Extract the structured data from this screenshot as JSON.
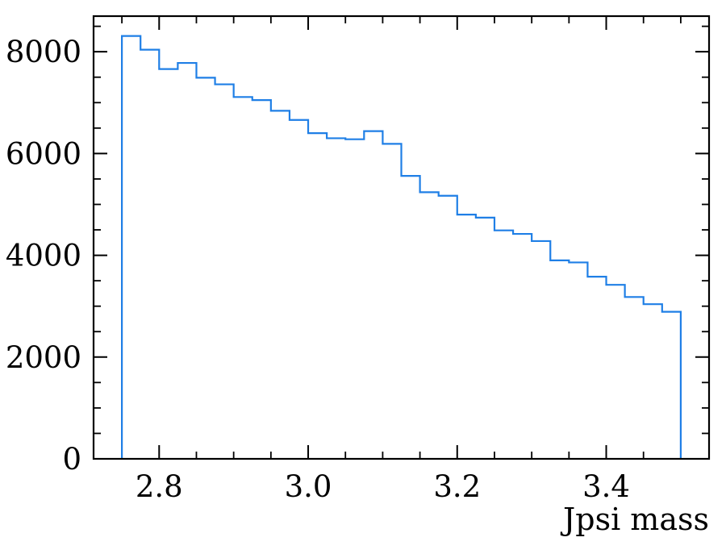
{
  "chart_data": {
    "type": "histogram",
    "xlabel": "Jpsi mass",
    "ylabel": "",
    "title": "",
    "xlim": [
      2.712,
      3.538
    ],
    "ylim": [
      0,
      8700
    ],
    "grid": false,
    "series_color": "#1f7fe6",
    "xticks": [
      2.8,
      3.0,
      3.2,
      3.4
    ],
    "xtick_labels": [
      "2.8",
      "3.0",
      "3.2",
      "3.4"
    ],
    "yticks": [
      0,
      2000,
      4000,
      6000,
      8000
    ],
    "ytick_labels": [
      "0",
      "2000",
      "4000",
      "6000",
      "8000"
    ],
    "bin_edges": [
      2.75,
      2.775,
      2.8,
      2.825,
      2.85,
      2.875,
      2.9,
      2.925,
      2.95,
      2.975,
      3.0,
      3.025,
      3.05,
      3.075,
      3.1,
      3.125,
      3.15,
      3.175,
      3.2,
      3.225,
      3.25,
      3.275,
      3.3,
      3.325,
      3.35,
      3.375,
      3.4,
      3.425,
      3.45,
      3.475,
      3.5
    ],
    "values": [
      8310,
      8040,
      7660,
      7780,
      7490,
      7360,
      7110,
      7050,
      6840,
      6660,
      6400,
      6300,
      6280,
      6440,
      6190,
      5560,
      5240,
      5170,
      4800,
      4740,
      4490,
      4420,
      4280,
      3900,
      3860,
      3580,
      3420,
      3180,
      3040,
      2890
    ]
  }
}
